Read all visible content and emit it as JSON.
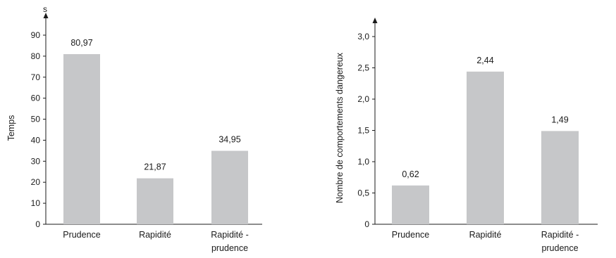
{
  "chart_data": [
    {
      "type": "bar",
      "categories": [
        "Prudence",
        "Rapidité",
        "Rapidité -\nprudence"
      ],
      "values": [
        80.97,
        21.87,
        34.95
      ],
      "value_labels": [
        "80,97",
        "21,87",
        "34,95"
      ],
      "title": "",
      "ylabel": "Temps",
      "yunit": "s",
      "ylim": [
        0,
        90
      ],
      "yticks": [
        "0",
        "10",
        "20",
        "30",
        "40",
        "50",
        "60",
        "70",
        "80",
        "90"
      ],
      "ytick_values": [
        0,
        10,
        20,
        30,
        40,
        50,
        60,
        70,
        80,
        90
      ],
      "bar_color": "#c6c7c9",
      "grid": false
    },
    {
      "type": "bar",
      "categories": [
        "Prudence",
        "Rapidité",
        "Rapidité -\nprudence"
      ],
      "values": [
        0.62,
        2.44,
        1.49
      ],
      "value_labels": [
        "0,62",
        "2,44",
        "1,49"
      ],
      "title": "",
      "ylabel": "Nombre de comportements dangereux",
      "ylim": [
        0,
        3.0
      ],
      "yticks": [
        "0",
        "0,5",
        "1,0",
        "1,5",
        "2,0",
        "2,5",
        "3,0"
      ],
      "ytick_values": [
        0,
        0.5,
        1.0,
        1.5,
        2.0,
        2.5,
        3.0
      ],
      "bar_color": "#c6c7c9",
      "grid": false
    }
  ]
}
